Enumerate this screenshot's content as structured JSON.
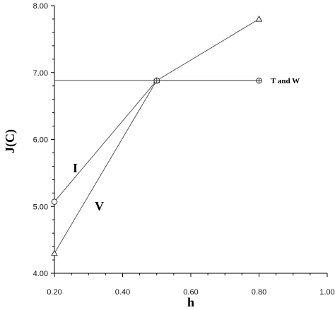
{
  "chart_data": {
    "type": "line",
    "title": "",
    "xlabel": "h",
    "ylabel": "J(C)",
    "xlim": [
      0.2,
      1.0
    ],
    "ylim": [
      4.0,
      8.0
    ],
    "x_ticks": [
      "0.20",
      "0.40",
      "0.60",
      "0.80",
      "1.00"
    ],
    "y_ticks": [
      "4.00",
      "5.00",
      "6.00",
      "7.00",
      "8.00"
    ],
    "grid": false,
    "series": [
      {
        "name": "I",
        "marker": "circle",
        "x": [
          0.2,
          0.5
        ],
        "y": [
          5.07,
          6.88
        ]
      },
      {
        "name": "V",
        "marker": "triangle",
        "x": [
          0.2,
          0.5,
          0.8
        ],
        "y": [
          4.3,
          6.88,
          7.8
        ]
      },
      {
        "name": "T and W",
        "marker": "circle-cross",
        "x": [
          0.5,
          0.8
        ],
        "y": [
          6.88,
          6.88
        ]
      }
    ],
    "reference_line": {
      "y": 6.88
    }
  }
}
